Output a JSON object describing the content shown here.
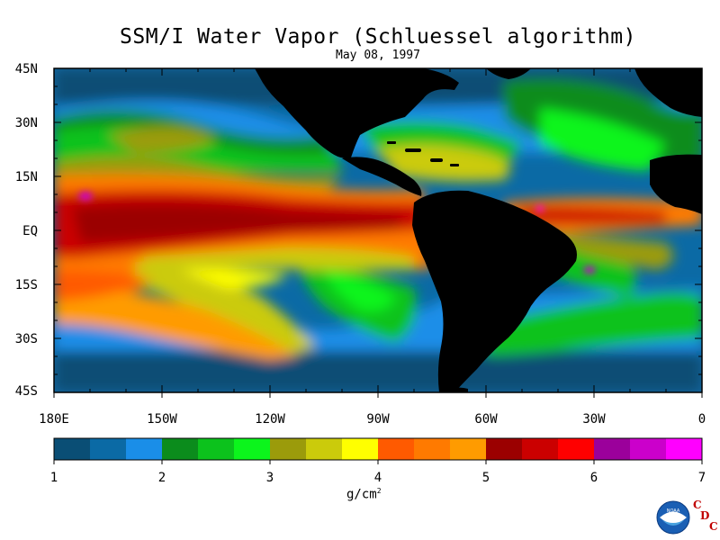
{
  "title": "SSM/I Water Vapor (Schluessel algorithm)",
  "date": "May 08, 1997",
  "map": {
    "lat_labels": [
      "45N",
      "30N",
      "15N",
      "EQ",
      "15S",
      "30S",
      "45S"
    ],
    "lon_labels": [
      "180E",
      "150W",
      "120W",
      "90W",
      "60W",
      "30W",
      "0"
    ],
    "lat_range": [
      -45,
      45
    ],
    "lon_range": [
      -180,
      0
    ],
    "land_color": "#000000"
  },
  "colorbar": {
    "labels": [
      "1",
      "2",
      "3",
      "4",
      "5",
      "6",
      "7"
    ],
    "range": [
      1,
      7
    ],
    "units": "g/cm",
    "units_exp": "2",
    "colors": [
      "#0a4e75",
      "#0b6aa5",
      "#1a8ee8",
      "#0b8c1c",
      "#0cc21c",
      "#0cf51c",
      "#9b9b0b",
      "#cbcb0b",
      "#ffff00",
      "#ff5a00",
      "#ff7a00",
      "#ff9b00",
      "#9b0000",
      "#cb0000",
      "#ff0000",
      "#9b009b",
      "#cb00cb",
      "#ff00ff"
    ]
  },
  "logo": {
    "noaa": "NOAA",
    "cdc": [
      "C",
      "D",
      "C"
    ]
  }
}
